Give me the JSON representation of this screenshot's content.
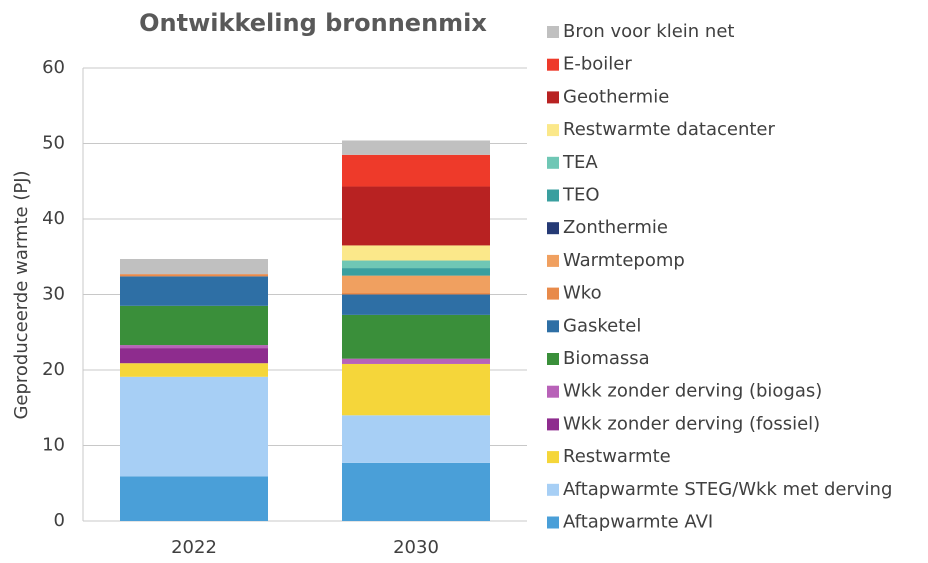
{
  "chart_data": {
    "type": "stacked_bar",
    "title": "Ontwikkeling bronnenmix",
    "y_label": "Geproduceerde warmte (PJ)",
    "categories": [
      "2022",
      "2030"
    ],
    "ylim": [
      0,
      60
    ],
    "yticks": [
      0,
      10,
      20,
      30,
      40,
      50,
      60
    ],
    "grid": true,
    "series": [
      {
        "name": "Aftapwarmte AVI",
        "color": "#4a9fd8",
        "values": [
          5.9,
          7.7
        ]
      },
      {
        "name": "Aftapwarmte STEG/Wkk met derving",
        "color": "#a7cff5",
        "values": [
          13.2,
          6.3
        ]
      },
      {
        "name": "Restwarmte",
        "color": "#f5d63a",
        "values": [
          1.8,
          6.8
        ]
      },
      {
        "name": "Wkk zonder derving (fossiel)",
        "color": "#8e2c8e",
        "values": [
          2.0,
          0
        ]
      },
      {
        "name": "Wkk zonder derving (biogas)",
        "color": "#b862b8",
        "values": [
          0.4,
          0.7
        ]
      },
      {
        "name": "Biomassa",
        "color": "#3a8f3a",
        "values": [
          5.2,
          5.8
        ]
      },
      {
        "name": "Gasketel",
        "color": "#2e6fa5",
        "values": [
          3.9,
          2.7
        ]
      },
      {
        "name": "Wko",
        "color": "#e88a4a",
        "values": [
          0.3,
          0.2
        ]
      },
      {
        "name": "Warmtepomp",
        "color": "#f0a060",
        "values": [
          0,
          2.3
        ]
      },
      {
        "name": "Zonthermie",
        "color": "#253a75",
        "values": [
          0,
          0
        ]
      },
      {
        "name": "TEO",
        "color": "#3a9f9f",
        "values": [
          0,
          1.0
        ]
      },
      {
        "name": "TEA",
        "color": "#6fc7b5",
        "values": [
          0,
          1.0
        ]
      },
      {
        "name": "Restwarmte datacenter",
        "color": "#fbe88a",
        "values": [
          0,
          2.0
        ]
      },
      {
        "name": "Geothermie",
        "color": "#b82222",
        "values": [
          0,
          7.8
        ]
      },
      {
        "name": "E-boiler",
        "color": "#ee3a2a",
        "values": [
          0,
          4.2
        ]
      },
      {
        "name": "Bron voor klein net",
        "color": "#c0c0c0",
        "values": [
          2.0,
          1.9
        ]
      }
    ]
  }
}
